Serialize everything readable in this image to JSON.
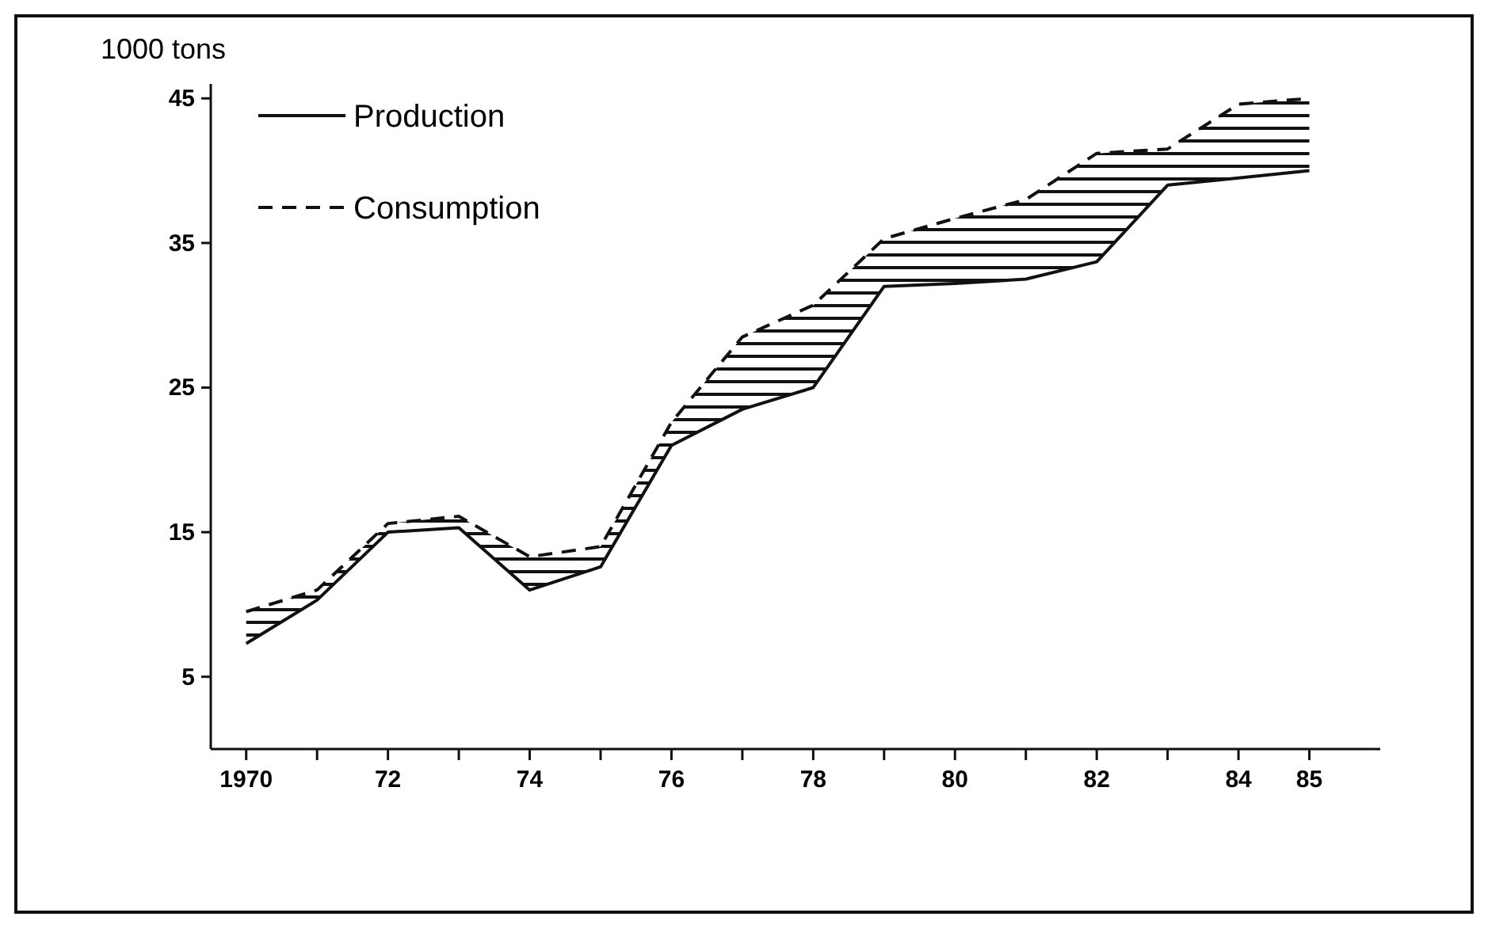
{
  "chart_data": {
    "type": "line",
    "ylabel": "1000 tons",
    "x": [
      1970,
      1971,
      1972,
      1973,
      1974,
      1975,
      1976,
      1977,
      1978,
      1979,
      1980,
      1981,
      1982,
      1983,
      1984,
      1985
    ],
    "series": [
      {
        "name": "Production",
        "color": "#111111",
        "line_style": "solid",
        "values": [
          7.3,
          10.3,
          15,
          15.3,
          11,
          12.6,
          21,
          23.5,
          25,
          32,
          32.2,
          32.5,
          33.7,
          39,
          39.5,
          40
        ]
      },
      {
        "name": "Consumption",
        "color": "#111111",
        "line_style": "dashed",
        "values": [
          9.5,
          11,
          15.6,
          16.1,
          13.3,
          14,
          22.6,
          28.5,
          30.7,
          35.3,
          36.7,
          38,
          41.2,
          41.5,
          44.6,
          45
        ],
        "lower": [
          7.3,
          10.3,
          15,
          15.3,
          11,
          12.6,
          21,
          23.5,
          25,
          32,
          32.2,
          32.5,
          33.7,
          39,
          39.5,
          40
        ],
        "upper": [
          9.5,
          11,
          15.6,
          16.1,
          13.3,
          14,
          22.6,
          28.5,
          30.7,
          35.3,
          36.7,
          38,
          41.2,
          41.5,
          44.6,
          45
        ]
      }
    ],
    "xlim": [
      1969.5,
      1986
    ],
    "xticks": [
      {
        "value": 1970,
        "label": "1970"
      },
      {
        "value": 1971,
        "label": null
      },
      {
        "value": 1972,
        "label": "72"
      },
      {
        "value": 1973,
        "label": null
      },
      {
        "value": 1974,
        "label": "74"
      },
      {
        "value": 1975,
        "label": null
      },
      {
        "value": 1976,
        "label": "76"
      },
      {
        "value": 1977,
        "label": null
      },
      {
        "value": 1978,
        "label": "78"
      },
      {
        "value": 1979,
        "label": null
      },
      {
        "value": 1980,
        "label": "80"
      },
      {
        "value": 1981,
        "label": null
      },
      {
        "value": 1982,
        "label": "82"
      },
      {
        "value": 1983,
        "label": null
      },
      {
        "value": 1984,
        "label": "84"
      },
      {
        "value": 1985,
        "label": "85"
      }
    ],
    "ylim": [
      0,
      46
    ],
    "yticks": [
      5,
      15,
      25,
      35,
      45
    ],
    "legend": "top left",
    "grid": false
  }
}
